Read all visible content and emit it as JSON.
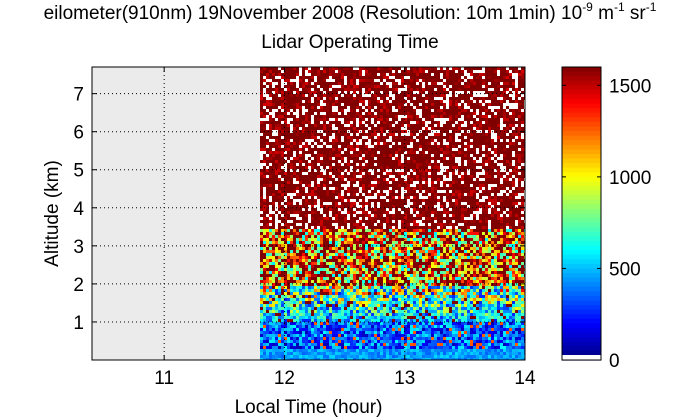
{
  "title": {
    "line1_parts": [
      "eilometer(910nm) 19November 2008 (Resolution: 10m 1min) 10",
      "-9",
      " m",
      "-1",
      " sr",
      "-1"
    ],
    "line2": "Lidar Operating Time"
  },
  "chart_data": {
    "type": "heatmap",
    "xlabel": "Local Time (hour)",
    "ylabel": "Altitude (km)",
    "xlim": [
      10.4,
      14.0
    ],
    "ylim": [
      0.0,
      7.7
    ],
    "xticks": [
      11,
      12,
      13,
      14
    ],
    "yticks": [
      1,
      2,
      3,
      4,
      5,
      6,
      7
    ],
    "grid": true,
    "no_data_until_hour": 11.8,
    "no_data_color": "#ebebeb",
    "colorbar": {
      "min": 0,
      "max": 1600,
      "ticks": [
        0,
        500,
        1000,
        1500
      ],
      "colormap": "jet",
      "placement": "right"
    }
  }
}
